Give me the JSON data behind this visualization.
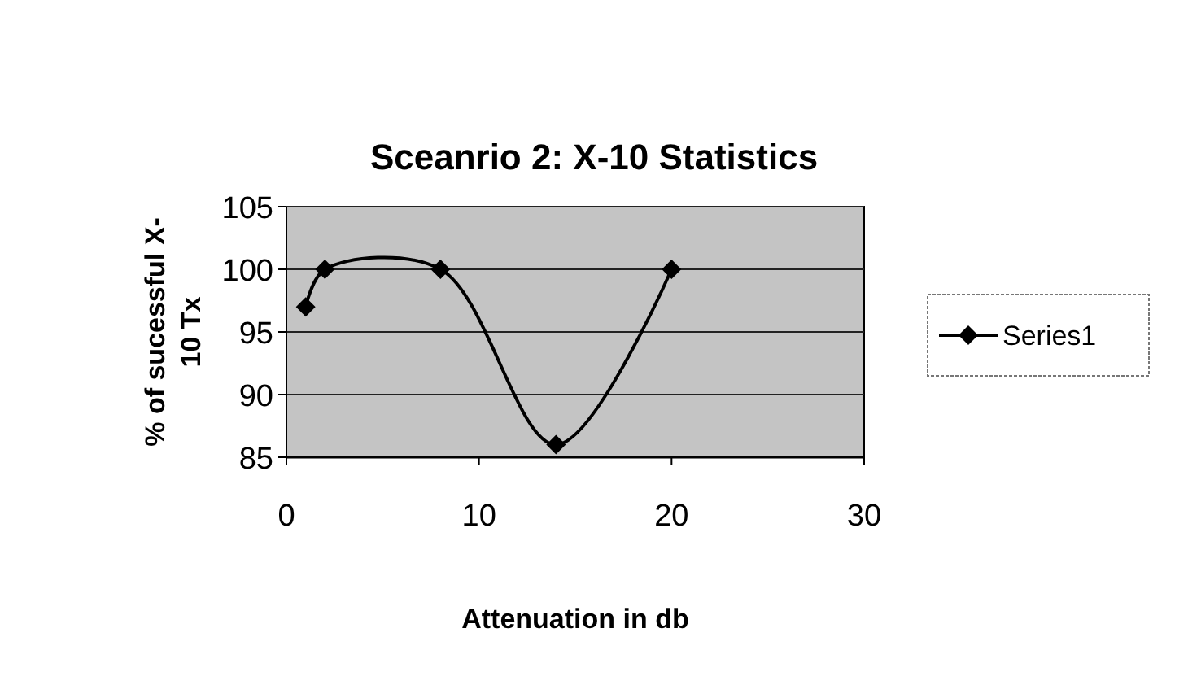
{
  "chart_data": {
    "type": "line",
    "title": "Sceanrio 2: X-10 Statistics",
    "xlabel": "Attenuation in db",
    "ylabel": "% of sucessful X-10 Tx",
    "x": [
      1,
      2,
      8,
      14,
      20
    ],
    "series": [
      {
        "name": "Series1",
        "color": "#000000",
        "values": [
          97,
          100,
          100,
          86,
          100
        ]
      }
    ],
    "xlim": [
      0,
      30
    ],
    "xticks": [
      0,
      10,
      20,
      30
    ],
    "ylim": [
      85,
      105
    ],
    "yticks": [
      85,
      90,
      95,
      100,
      105
    ],
    "grid": "y",
    "legend": "right",
    "marker": "diamond",
    "line_style": "solid"
  }
}
